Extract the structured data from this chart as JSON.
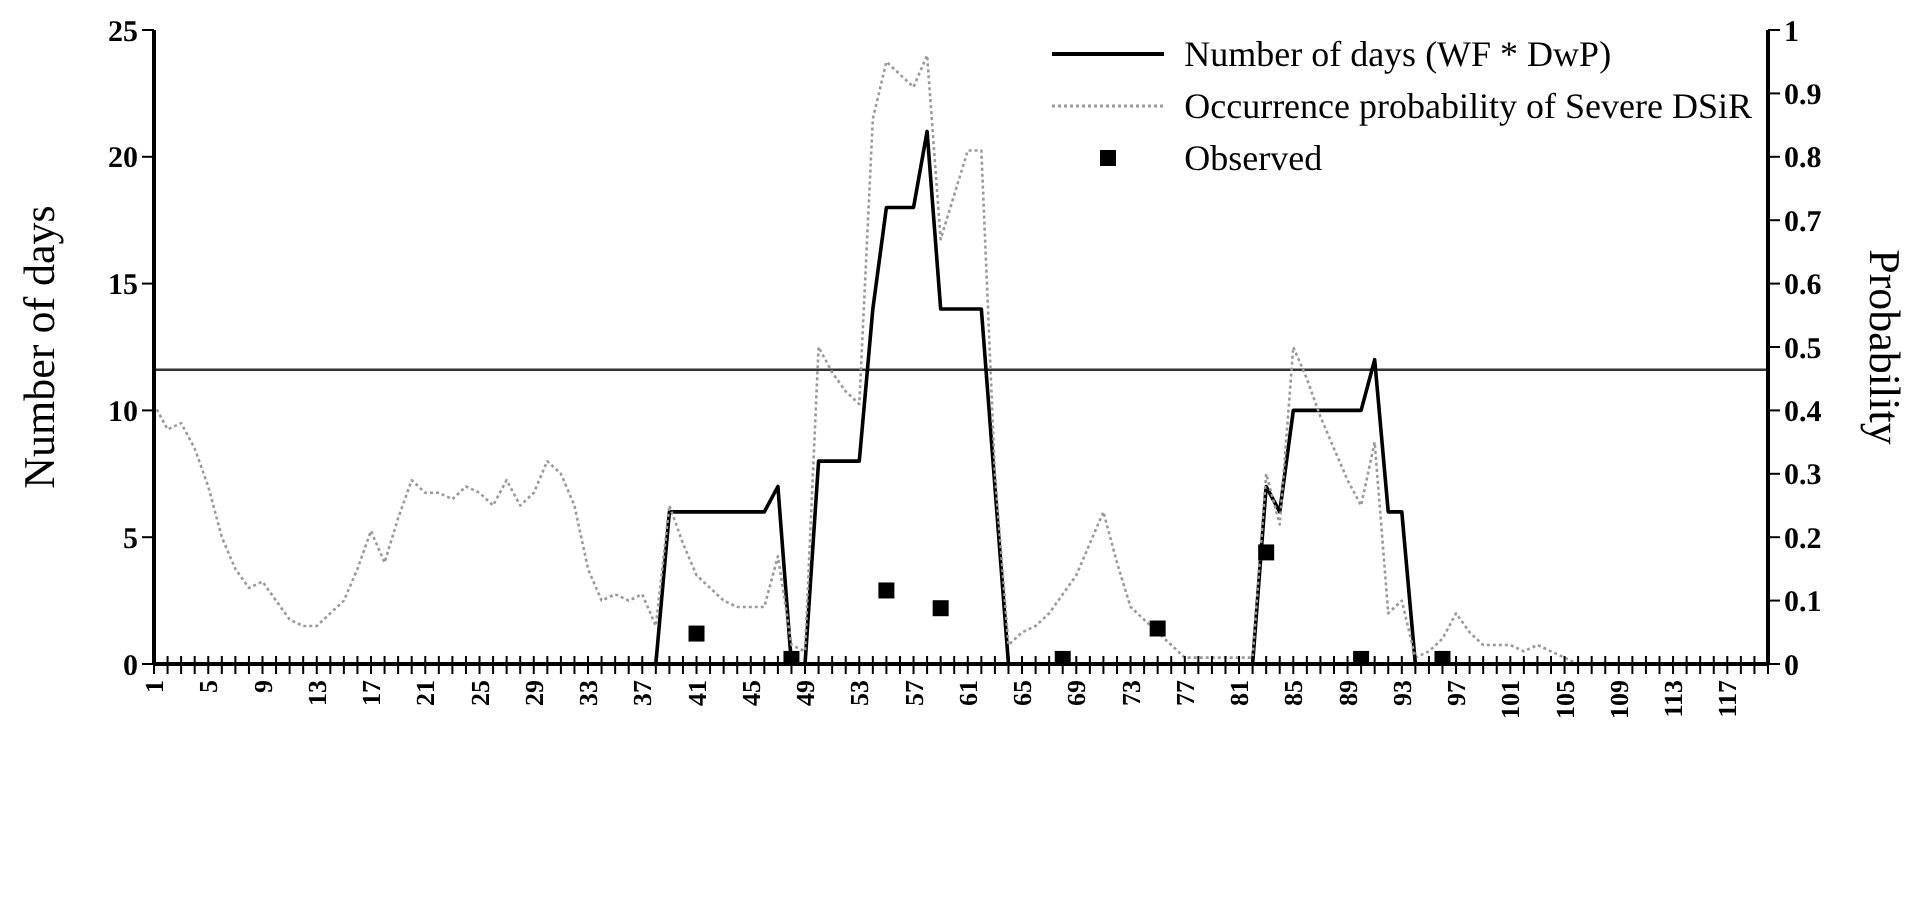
{
  "chart_data": {
    "type": "line",
    "categories": [
      "1",
      null,
      null,
      null,
      "5",
      null,
      null,
      null,
      "9",
      null,
      null,
      null,
      "13",
      null,
      null,
      null,
      "17",
      null,
      null,
      null,
      "21",
      null,
      null,
      null,
      "25",
      null,
      null,
      null,
      "29",
      null,
      null,
      null,
      "33",
      null,
      null,
      null,
      "37",
      null,
      null,
      null,
      "41",
      null,
      null,
      null,
      "45",
      null,
      null,
      null,
      "49",
      null,
      null,
      null,
      "53",
      null,
      null,
      null,
      "57",
      null,
      null,
      null,
      "61",
      null,
      null,
      null,
      "65",
      null,
      null,
      null,
      "69",
      null,
      null,
      null,
      "73",
      null,
      null,
      null,
      "77",
      null,
      null,
      null,
      "81",
      null,
      null,
      null,
      "85",
      null,
      null,
      null,
      "89",
      null,
      null,
      null,
      "93",
      null,
      null,
      null,
      "97",
      null,
      null,
      null,
      "101",
      null,
      null,
      null,
      "105",
      null,
      null,
      null,
      "109",
      null,
      null,
      null,
      "113",
      null,
      null,
      null,
      "117",
      null,
      null,
      null
    ],
    "series": [
      {
        "name": "Number of days (WF * DwP)",
        "color": "#000000",
        "line_style": "solid",
        "values": [
          0,
          0,
          0,
          0,
          0,
          0,
          0,
          0,
          0,
          0,
          0,
          0,
          0,
          0,
          0,
          0,
          0,
          0,
          0,
          0,
          0,
          0,
          0,
          0,
          0,
          0,
          0,
          0,
          0,
          0,
          0,
          0,
          0,
          0,
          0,
          0,
          0,
          0,
          6,
          6,
          6,
          6,
          6,
          6,
          6,
          6,
          7,
          0,
          0,
          8,
          8,
          8,
          8,
          14,
          18,
          18,
          18,
          21,
          14,
          14,
          14,
          14,
          7,
          0,
          0,
          0,
          0,
          0,
          0,
          0,
          0,
          0,
          0,
          0,
          0,
          0,
          0,
          0,
          0,
          0,
          0,
          0,
          7,
          6,
          10,
          10,
          10,
          10,
          10,
          10,
          12,
          6,
          6,
          0,
          0,
          0,
          0,
          0,
          0,
          0,
          0,
          0,
          0,
          0,
          0,
          0,
          0,
          0,
          0,
          0,
          0,
          0,
          0,
          0,
          0,
          0,
          0,
          0,
          0,
          0
        ]
      },
      {
        "name": "Occurrence probability of Severe DSiR",
        "axis": "y2",
        "color": "#9a9a9a",
        "line_style": "dotted",
        "values": [
          0.41,
          0.37,
          0.38,
          0.34,
          0.28,
          0.2,
          0.15,
          0.12,
          0.13,
          0.1,
          0.07,
          0.06,
          0.06,
          0.08,
          0.1,
          0.15,
          0.21,
          0.16,
          0.23,
          0.29,
          0.27,
          0.27,
          0.26,
          0.28,
          0.27,
          0.25,
          0.29,
          0.25,
          0.27,
          0.32,
          0.3,
          0.25,
          0.15,
          0.1,
          0.11,
          0.1,
          0.11,
          0.06,
          0.25,
          0.19,
          0.14,
          0.12,
          0.1,
          0.09,
          0.09,
          0.09,
          0.17,
          0.03,
          0.02,
          0.5,
          0.46,
          0.43,
          0.41,
          0.86,
          0.95,
          0.93,
          0.91,
          0.96,
          0.67,
          0.74,
          0.81,
          0.81,
          0.3,
          0.03,
          0.05,
          0.06,
          0.08,
          0.11,
          0.14,
          0.19,
          0.24,
          0.16,
          0.09,
          0.07,
          0.05,
          0.03,
          0.01,
          0.01,
          0.01,
          0.01,
          0.01,
          0.01,
          0.3,
          0.22,
          0.5,
          0.45,
          0.39,
          0.34,
          0.29,
          0.25,
          0.35,
          0.08,
          0.1,
          0.01,
          0.02,
          0.04,
          0.08,
          0.05,
          0.03,
          0.03,
          0.03,
          0.02,
          0.03,
          0.02,
          0.01,
          0,
          0,
          0,
          0,
          0,
          0,
          0,
          0,
          0,
          0,
          0,
          0,
          0,
          0,
          0
        ]
      },
      {
        "name": "Observed",
        "type": "scatter",
        "color": "#000000",
        "marker": "square",
        "values": [
          null,
          null,
          null,
          null,
          null,
          null,
          null,
          null,
          null,
          null,
          null,
          null,
          null,
          null,
          null,
          null,
          null,
          null,
          null,
          null,
          null,
          null,
          null,
          null,
          null,
          null,
          null,
          null,
          null,
          null,
          null,
          null,
          null,
          null,
          null,
          null,
          null,
          null,
          null,
          null,
          1.2,
          null,
          null,
          null,
          null,
          null,
          null,
          0.2,
          null,
          null,
          null,
          null,
          null,
          null,
          2.9,
          null,
          null,
          null,
          2.2,
          null,
          null,
          null,
          null,
          null,
          null,
          null,
          null,
          0.2,
          null,
          null,
          null,
          null,
          null,
          null,
          1.4,
          null,
          null,
          null,
          null,
          null,
          null,
          null,
          4.4,
          null,
          null,
          null,
          null,
          null,
          null,
          0.2,
          null,
          null,
          null,
          null,
          null,
          0.2,
          null,
          null,
          null,
          null,
          null,
          null,
          null,
          null,
          null,
          null,
          null,
          null,
          null,
          null,
          null,
          null,
          null,
          null,
          null,
          null,
          null,
          null,
          null,
          null
        ]
      }
    ],
    "ylabel": "Number of days",
    "y2label": "Probability",
    "ylim": [
      0,
      25
    ],
    "yticks": [
      0,
      5,
      10,
      15,
      20,
      25
    ],
    "y2lim": [
      0,
      1
    ],
    "y2ticks": [
      0,
      0.1,
      0.2,
      0.3,
      0.4,
      0.5,
      0.6,
      0.7,
      0.8,
      0.9,
      1
    ],
    "ref_lines": [
      {
        "axis": "y",
        "value": 11.6,
        "color": "#333333"
      }
    ],
    "legend": "top right"
  }
}
